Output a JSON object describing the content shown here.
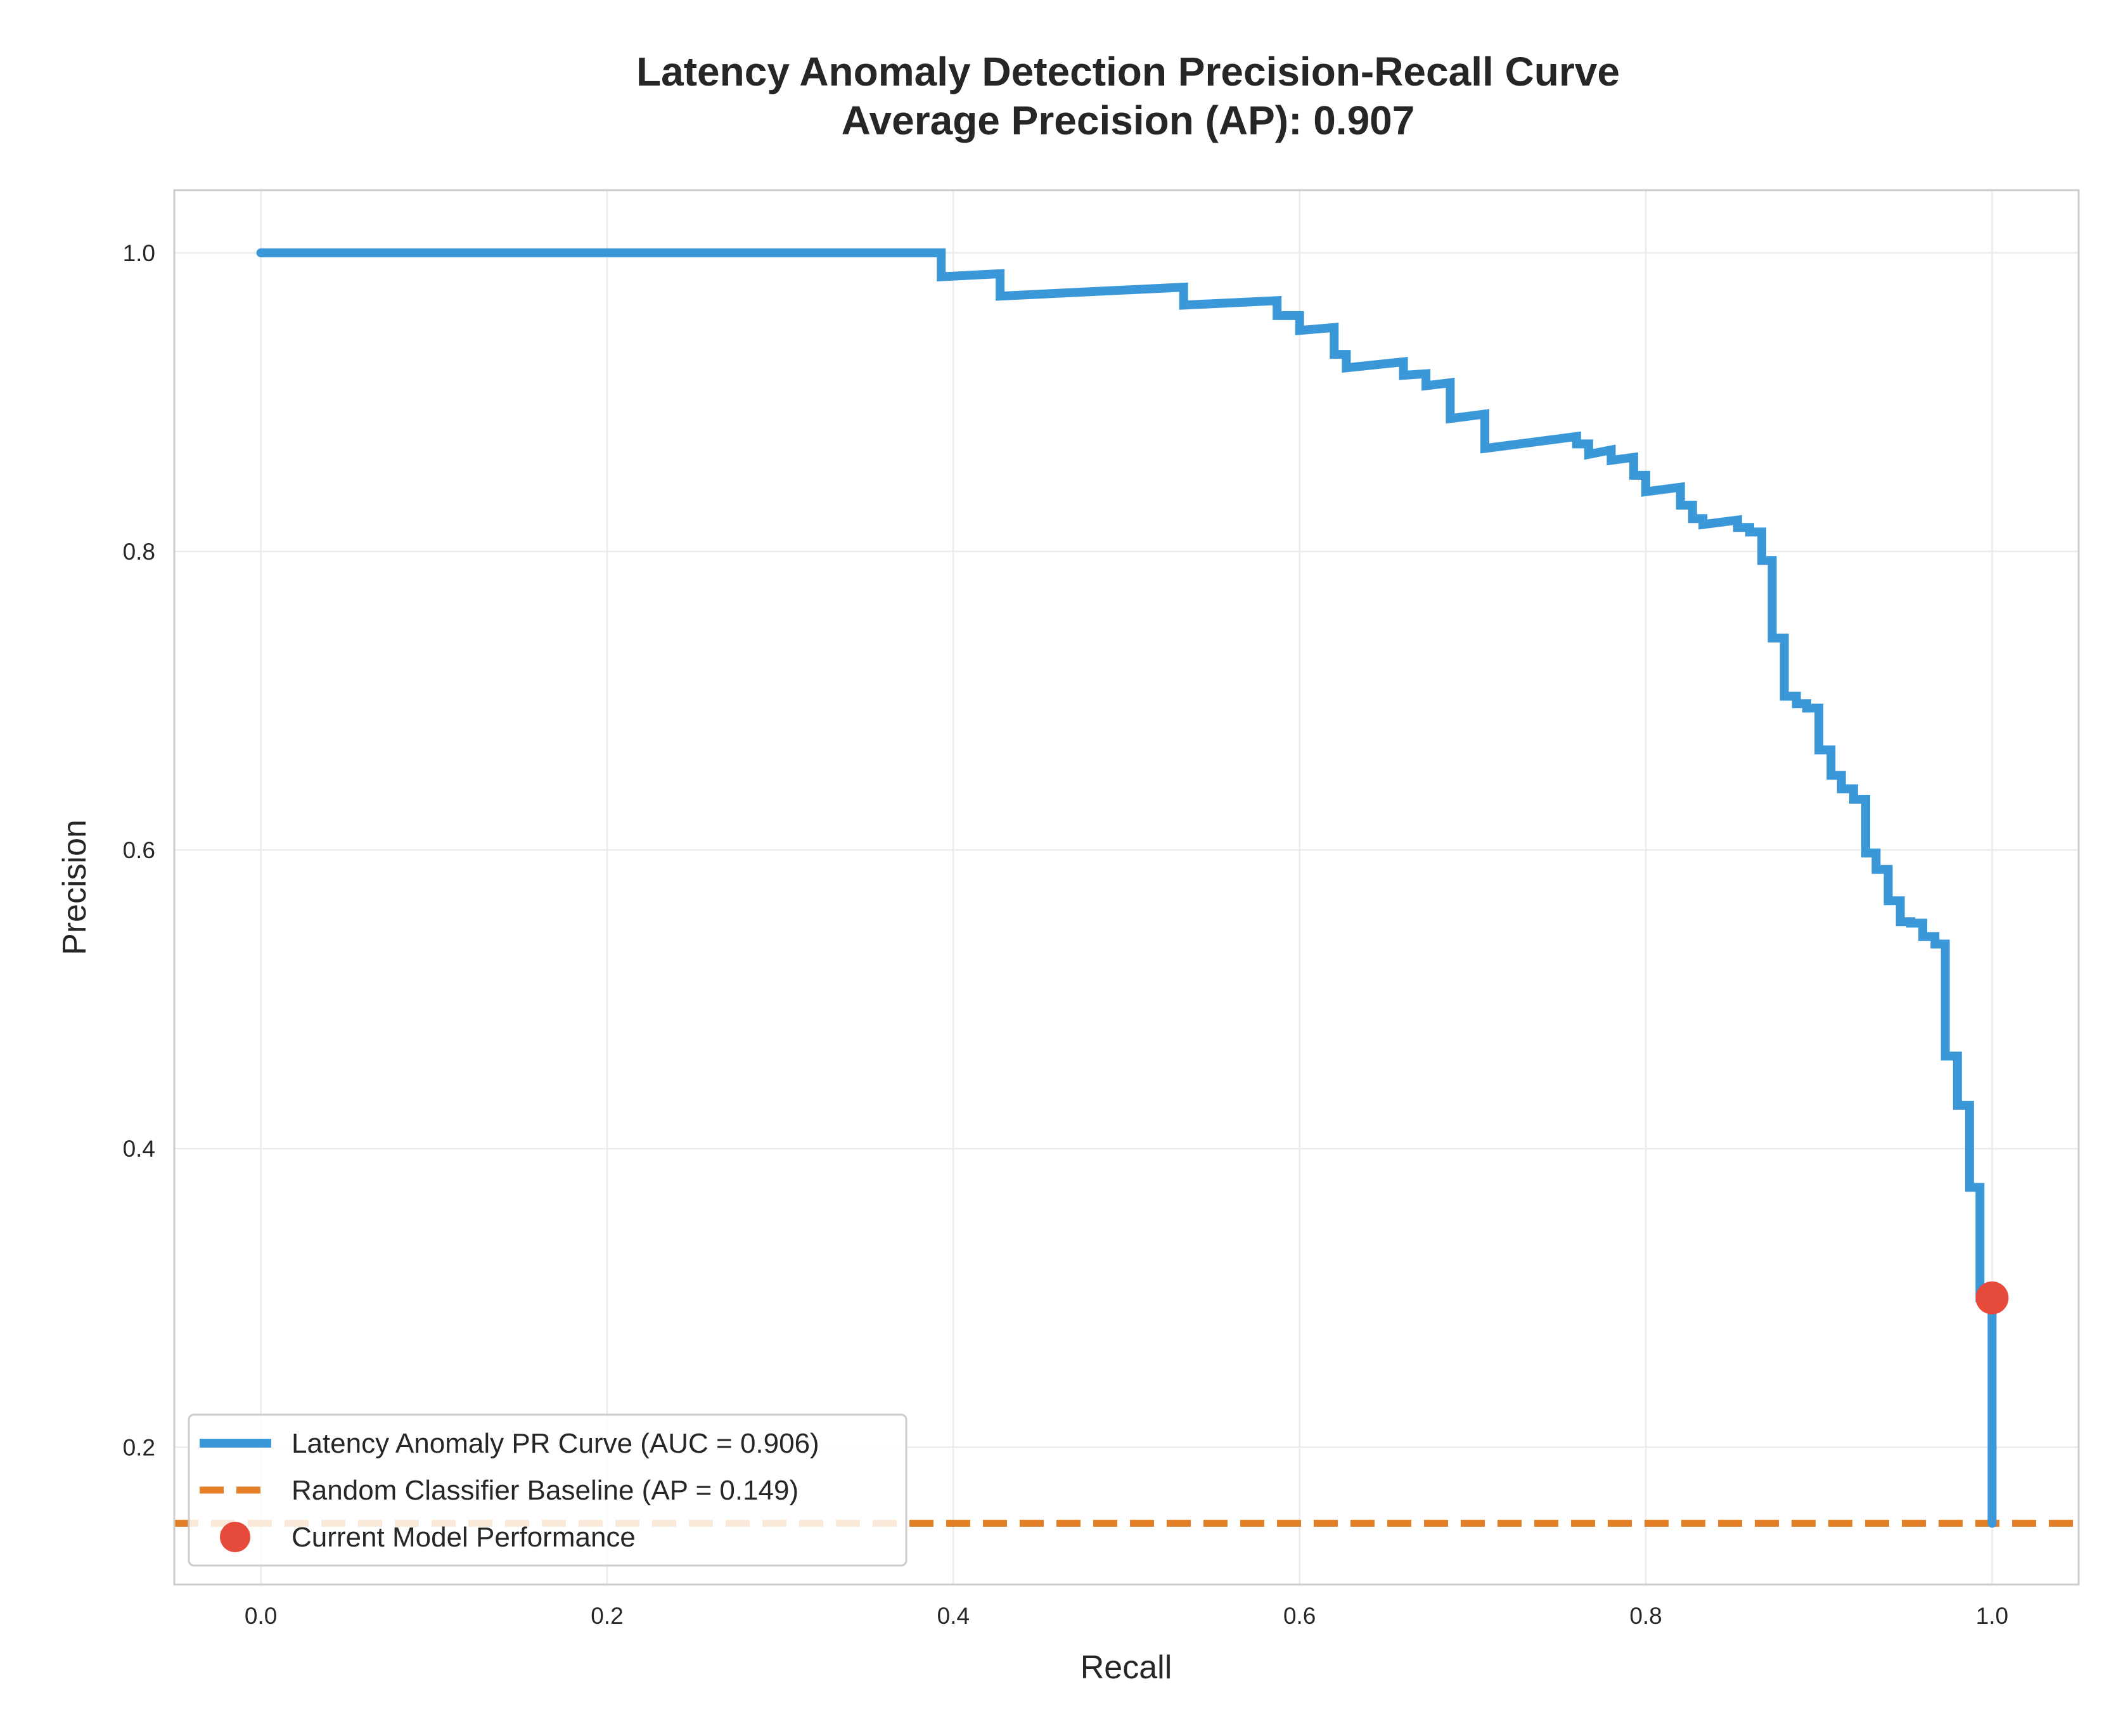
{
  "chart_data": {
    "type": "line",
    "title": "Latency Anomaly Detection Precision-Recall Curve",
    "subtitle": "Average Precision (AP): 0.907",
    "xlabel": "Recall",
    "ylabel": "Precision",
    "xlim": [
      -0.05,
      1.05
    ],
    "ylim": [
      0.108,
      1.042
    ],
    "xticks": [
      0.0,
      0.2,
      0.4,
      0.6,
      0.8,
      1.0
    ],
    "xtick_labels": [
      "0.0",
      "0.2",
      "0.4",
      "0.6",
      "0.8",
      "1.0"
    ],
    "yticks": [
      0.2,
      0.4,
      0.6,
      0.8,
      1.0
    ],
    "ytick_labels": [
      "0.2",
      "0.4",
      "0.6",
      "0.8",
      "1.0"
    ],
    "grid": true,
    "legend_position": "bottom-left",
    "series": [
      {
        "name": "Latency Anomaly PR Curve (AUC = 0.906)",
        "style": "solid",
        "color": "#3a98d8",
        "points": [
          [
            0.0,
            1.0
          ],
          [
            0.393,
            1.0
          ],
          [
            0.393,
            0.984
          ],
          [
            0.427,
            0.986
          ],
          [
            0.427,
            0.971
          ],
          [
            0.533,
            0.977
          ],
          [
            0.533,
            0.965
          ],
          [
            0.587,
            0.968
          ],
          [
            0.587,
            0.958
          ],
          [
            0.6,
            0.958
          ],
          [
            0.6,
            0.948
          ],
          [
            0.62,
            0.95
          ],
          [
            0.62,
            0.932
          ],
          [
            0.627,
            0.932
          ],
          [
            0.627,
            0.923
          ],
          [
            0.66,
            0.927
          ],
          [
            0.66,
            0.918
          ],
          [
            0.673,
            0.919
          ],
          [
            0.673,
            0.911
          ],
          [
            0.687,
            0.913
          ],
          [
            0.687,
            0.889
          ],
          [
            0.707,
            0.892
          ],
          [
            0.707,
            0.869
          ],
          [
            0.76,
            0.877
          ],
          [
            0.76,
            0.872
          ],
          [
            0.767,
            0.872
          ],
          [
            0.767,
            0.865
          ],
          [
            0.78,
            0.868
          ],
          [
            0.78,
            0.861
          ],
          [
            0.793,
            0.863
          ],
          [
            0.793,
            0.851
          ],
          [
            0.8,
            0.851
          ],
          [
            0.8,
            0.84
          ],
          [
            0.82,
            0.843
          ],
          [
            0.82,
            0.831
          ],
          [
            0.827,
            0.831
          ],
          [
            0.827,
            0.822
          ],
          [
            0.833,
            0.822
          ],
          [
            0.833,
            0.818
          ],
          [
            0.853,
            0.821
          ],
          [
            0.853,
            0.816
          ],
          [
            0.86,
            0.816
          ],
          [
            0.86,
            0.813
          ],
          [
            0.867,
            0.813
          ],
          [
            0.867,
            0.794
          ],
          [
            0.873,
            0.794
          ],
          [
            0.873,
            0.742
          ],
          [
            0.88,
            0.742
          ],
          [
            0.88,
            0.703
          ],
          [
            0.887,
            0.703
          ],
          [
            0.887,
            0.698
          ],
          [
            0.893,
            0.698
          ],
          [
            0.893,
            0.695
          ],
          [
            0.9,
            0.695
          ],
          [
            0.9,
            0.667
          ],
          [
            0.907,
            0.667
          ],
          [
            0.907,
            0.65
          ],
          [
            0.913,
            0.65
          ],
          [
            0.913,
            0.641
          ],
          [
            0.92,
            0.641
          ],
          [
            0.92,
            0.634
          ],
          [
            0.927,
            0.634
          ],
          [
            0.927,
            0.598
          ],
          [
            0.933,
            0.598
          ],
          [
            0.933,
            0.587
          ],
          [
            0.94,
            0.587
          ],
          [
            0.94,
            0.566
          ],
          [
            0.947,
            0.566
          ],
          [
            0.947,
            0.552
          ],
          [
            0.953,
            0.552
          ],
          [
            0.953,
            0.551
          ],
          [
            0.96,
            0.551
          ],
          [
            0.96,
            0.542
          ],
          [
            0.967,
            0.542
          ],
          [
            0.967,
            0.537
          ],
          [
            0.973,
            0.537
          ],
          [
            0.973,
            0.462
          ],
          [
            0.98,
            0.462
          ],
          [
            0.98,
            0.429
          ],
          [
            0.987,
            0.429
          ],
          [
            0.987,
            0.374
          ],
          [
            0.993,
            0.374
          ],
          [
            0.993,
            0.3
          ],
          [
            1.0,
            0.3
          ],
          [
            1.0,
            0.149
          ]
        ]
      },
      {
        "name": "Random Classifier Baseline (AP = 0.149)",
        "style": "dashed",
        "color": "#e37f27",
        "y": 0.149
      },
      {
        "name": "Current Model Performance",
        "style": "marker",
        "color": "#e64a3b",
        "points": [
          [
            1.0,
            0.3
          ]
        ]
      }
    ]
  }
}
